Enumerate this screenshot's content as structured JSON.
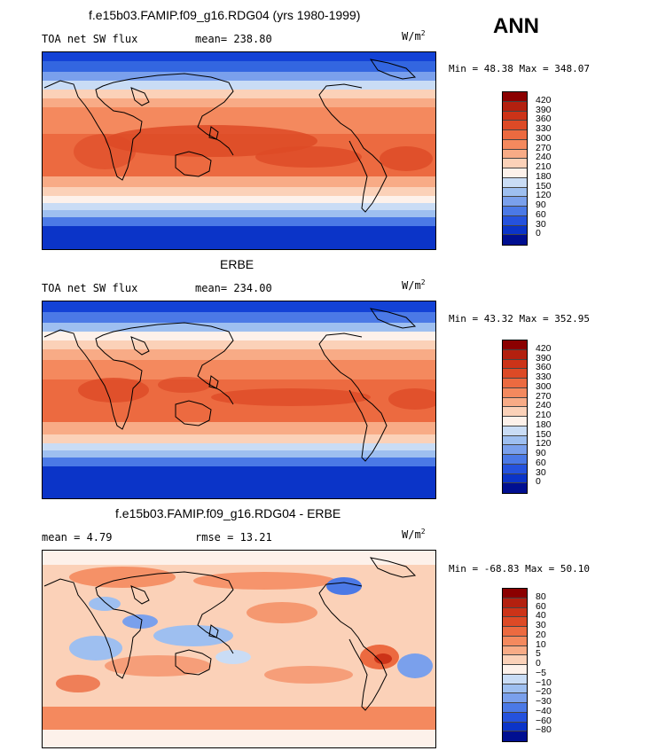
{
  "season": "ANN",
  "panels": [
    {
      "title": "f.e15b03.FAMIP.f09_g16.RDG04 (yrs 1980-1999)",
      "left_label": "TOA net SW flux",
      "stat_label": "mean= 238.80",
      "unit": "W/m",
      "unit_sup": "2",
      "minmax": "Min =  48.38 Max = 348.07",
      "levels": [
        "420",
        "390",
        "360",
        "330",
        "300",
        "270",
        "240",
        "210",
        "180",
        "150",
        "120",
        "90",
        "60",
        "30",
        "0"
      ],
      "colors": [
        "#8b0000",
        "#b3200f",
        "#cc3318",
        "#dd4a26",
        "#ec6a40",
        "#f4895e",
        "#f8ab86",
        "#fbd1b8",
        "#fdf1ea",
        "#c9dcf5",
        "#9ebff0",
        "#7aa0ec",
        "#4b79e6",
        "#2552dd",
        "#0b34c8",
        "#000f91"
      ]
    },
    {
      "title": "ERBE",
      "left_label": "TOA net SW flux",
      "stat_label": "mean= 234.00",
      "unit": "W/m",
      "unit_sup": "2",
      "minmax": "Min =  43.32 Max = 352.95",
      "levels": [
        "420",
        "390",
        "360",
        "330",
        "300",
        "270",
        "240",
        "210",
        "180",
        "150",
        "120",
        "90",
        "60",
        "30",
        "0"
      ],
      "colors": [
        "#8b0000",
        "#b3200f",
        "#cc3318",
        "#dd4a26",
        "#ec6a40",
        "#f4895e",
        "#f8ab86",
        "#fbd1b8",
        "#fdf1ea",
        "#c9dcf5",
        "#9ebff0",
        "#7aa0ec",
        "#4b79e6",
        "#2552dd",
        "#0b34c8",
        "#000f91"
      ]
    },
    {
      "title": "f.e15b03.FAMIP.f09_g16.RDG04 - ERBE",
      "left_label": "mean =    4.79",
      "stat_label": "rmse =   13.21",
      "unit": "W/m",
      "unit_sup": "2",
      "minmax": "Min = -68.83 Max =  50.10",
      "levels": [
        "80",
        "60",
        "40",
        "30",
        "20",
        "10",
        "5",
        "0",
        "−5",
        "−10",
        "−20",
        "−30",
        "−40",
        "−60",
        "−80"
      ],
      "colors": [
        "#8b0000",
        "#b3200f",
        "#cc3318",
        "#dd4a26",
        "#ec6a40",
        "#f4895e",
        "#f8ab86",
        "#fbd1b8",
        "#fdf1ea",
        "#c9dcf5",
        "#9ebff0",
        "#7aa0ec",
        "#4b79e6",
        "#2552dd",
        "#0b34c8",
        "#000f91"
      ]
    }
  ]
}
